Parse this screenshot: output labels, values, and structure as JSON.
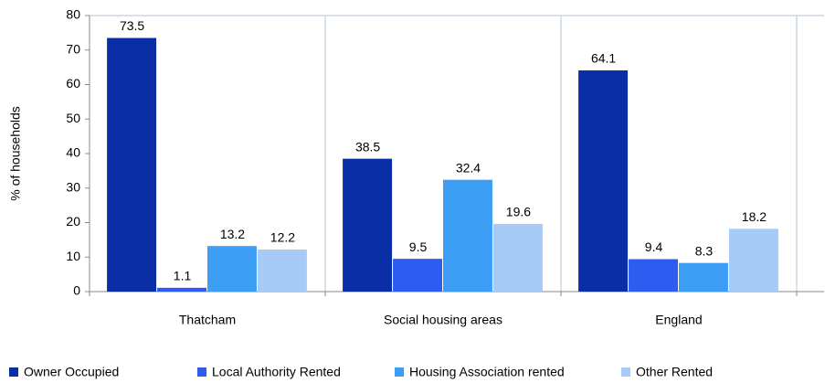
{
  "chart_data": {
    "type": "bar",
    "y_label": "% of households",
    "categories": [
      "Thatcham",
      "Social housing areas",
      "England"
    ],
    "series": [
      {
        "name": "Owner Occupied",
        "color": "#0a2ea6",
        "values": [
          73.5,
          38.5,
          64.1
        ]
      },
      {
        "name": "Local Authority Rented",
        "color": "#2d5cf0",
        "values": [
          1.1,
          9.5,
          9.4
        ]
      },
      {
        "name": "Housing Association rented",
        "color": "#3d9ef5",
        "values": [
          13.2,
          32.4,
          8.3
        ]
      },
      {
        "name": "Other Rented",
        "color": "#a6cbf7",
        "values": [
          12.2,
          19.6,
          18.2
        ]
      }
    ],
    "ylim": [
      0,
      80
    ],
    "yticks": [
      0,
      10,
      20,
      30,
      40,
      50,
      60,
      70,
      80
    ],
    "grid": "vertical",
    "legend": "bottom"
  }
}
